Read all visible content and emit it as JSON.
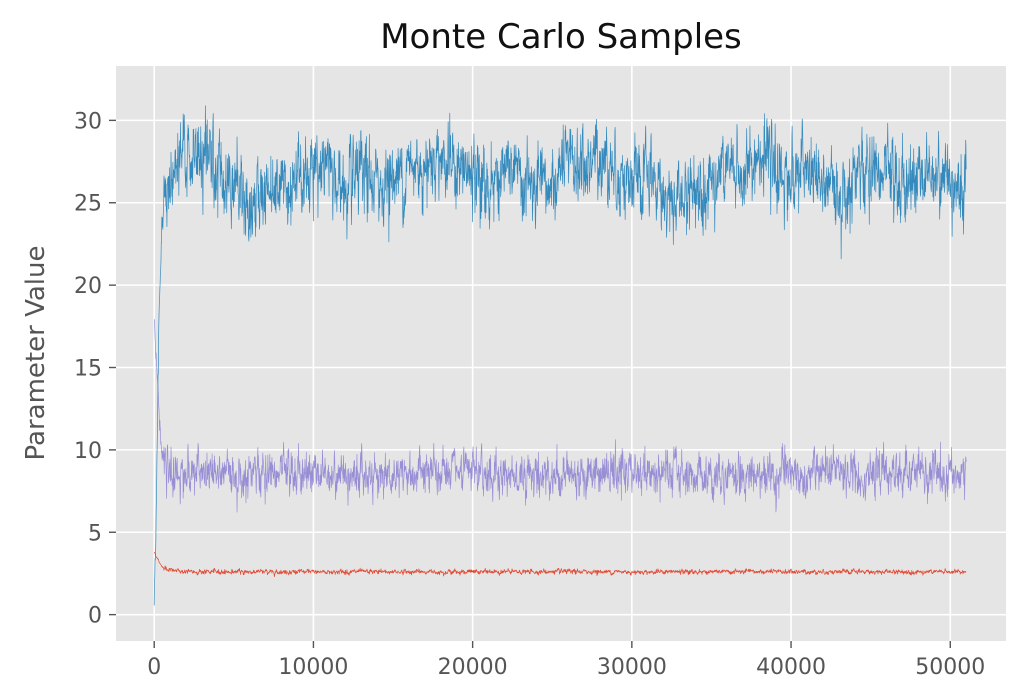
{
  "chart_data": {
    "type": "line",
    "title": "Monte Carlo Samples",
    "xlabel": "",
    "ylabel": "Parameter Value",
    "xlim": [
      -2400,
      53500
    ],
    "ylim": [
      -1.6,
      33.3
    ],
    "grid": true,
    "legend": "none",
    "xticks": [
      0,
      10000,
      20000,
      30000,
      40000,
      50000
    ],
    "yticks": [
      0,
      5,
      10,
      15,
      20,
      25,
      30
    ],
    "series": [
      {
        "color": "#348abd",
        "style": "noisy-trace",
        "x": [
          0,
          100,
          300,
          500,
          800,
          1000,
          1500,
          2000,
          3000,
          4000,
          5000,
          6000,
          7000,
          8000,
          9000,
          10000,
          11000,
          12000,
          13000,
          14000,
          15000,
          16000,
          17000,
          18000,
          19000,
          20000,
          21000,
          22000,
          23000,
          24000,
          25000,
          26000,
          27000,
          28000,
          29000,
          30000,
          31000,
          32000,
          33000,
          34000,
          35000,
          36000,
          37000,
          38000,
          39000,
          40000,
          41000,
          42000,
          43000,
          44000,
          45000,
          46000,
          47000,
          48000,
          49000,
          50000,
          51000
        ],
        "values": [
          0.5,
          5,
          18,
          24,
          25.5,
          26,
          27,
          28,
          27.5,
          27,
          26.5,
          24.5,
          26,
          26.5,
          26,
          27.5,
          27,
          25.5,
          26.5,
          26,
          26.5,
          27,
          27.5,
          28,
          27,
          26.5,
          26,
          27,
          26.5,
          25.5,
          26,
          27.5,
          27,
          28,
          27,
          26,
          26.5,
          25.5,
          25,
          26,
          26.5,
          27,
          26.5,
          28,
          27,
          26.5,
          27,
          26,
          25.5,
          26.5,
          27,
          26.5,
          26,
          26.5,
          27,
          26.5,
          25.5
        ],
        "noise": 1.6
      },
      {
        "color": "#988ed5",
        "style": "noisy-trace",
        "x": [
          0,
          100,
          200,
          300,
          400,
          500,
          700,
          1000,
          2000,
          5000,
          10000,
          15000,
          20000,
          25000,
          30000,
          35000,
          40000,
          45000,
          50000,
          51000
        ],
        "values": [
          18,
          16,
          14.5,
          12.5,
          10.5,
          9.5,
          8.8,
          8.6,
          8.6,
          8.5,
          8.6,
          8.5,
          8.6,
          8.5,
          8.6,
          8.5,
          8.5,
          8.6,
          8.5,
          8.5
        ],
        "noise": 0.9
      },
      {
        "color": "#e24a33",
        "style": "noisy-trace",
        "x": [
          0,
          200,
          500,
          1000,
          2000,
          5000,
          10000,
          15000,
          20000,
          25000,
          30000,
          35000,
          40000,
          45000,
          50000,
          51000
        ],
        "values": [
          3.8,
          3.4,
          2.9,
          2.7,
          2.6,
          2.6,
          2.6,
          2.6,
          2.6,
          2.6,
          2.6,
          2.6,
          2.6,
          2.6,
          2.6,
          2.6
        ],
        "noise": 0.1
      }
    ]
  }
}
